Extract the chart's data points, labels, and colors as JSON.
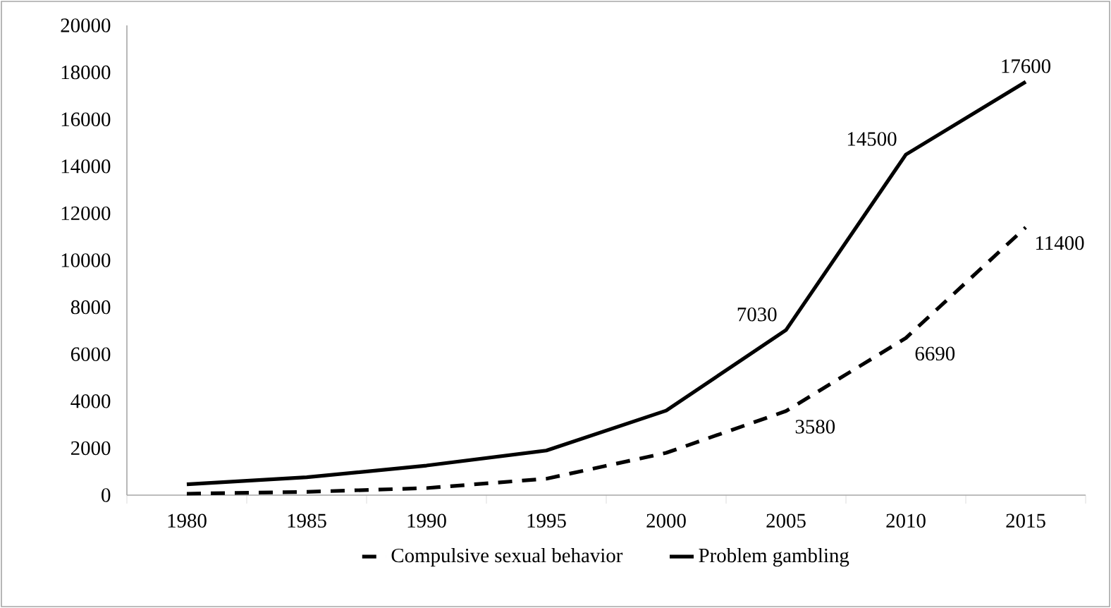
{
  "chart_data": {
    "type": "line",
    "categories": [
      "1980",
      "1985",
      "1990",
      "1995",
      "2000",
      "2005",
      "2010",
      "2015"
    ],
    "series": [
      {
        "name": "Compulsive sexual behavior",
        "color": "#000000",
        "line_style": "dashed",
        "values": [
          60,
          140,
          300,
          700,
          1800,
          3580,
          6690,
          11400
        ],
        "value_labels": [
          null,
          null,
          null,
          null,
          null,
          "3580",
          "6690",
          "11400"
        ]
      },
      {
        "name": "Problem gambling",
        "color": "#000000",
        "line_style": "solid",
        "values": [
          460,
          760,
          1260,
          1900,
          3600,
          7030,
          14500,
          17600
        ],
        "value_labels": [
          null,
          null,
          null,
          null,
          null,
          "7030",
          "14500",
          "17600"
        ]
      }
    ],
    "ylim": [
      0,
      20000
    ],
    "yticks": [
      0,
      2000,
      4000,
      6000,
      8000,
      10000,
      12000,
      14000,
      16000,
      18000,
      20000
    ],
    "legend": "bottom"
  }
}
